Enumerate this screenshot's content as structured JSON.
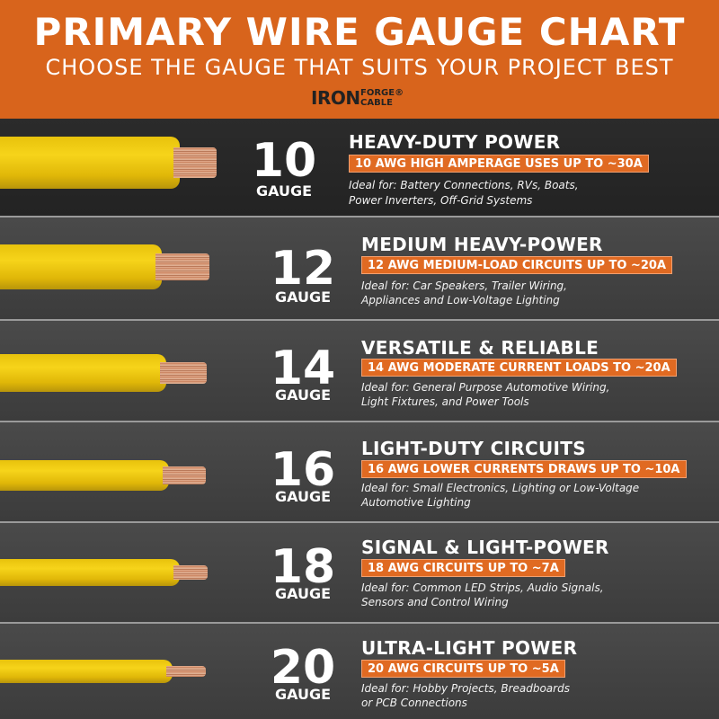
{
  "header": {
    "title": "PRIMARY WIRE GAUGE CHART",
    "subtitle": "CHOOSE THE GAUGE THAT SUITS YOUR PROJECT BEST",
    "logo_iron": "IRON",
    "logo_forge": "FORGE®",
    "logo_cable": "CABLE"
  },
  "colors": {
    "brand_orange": "#d8641c",
    "label_bar": "#e06a22",
    "wire_jacket": "#f2cf14",
    "copper": "#c47a55"
  },
  "rows": [
    {
      "gauge": "10",
      "gauge_word": "GAUGE",
      "heading": "HEAVY-DUTY POWER",
      "bar": "10 AWG HIGH AMPERAGE USES UP TO ~30A",
      "desc1": "Ideal for: Battery Connections, RVs, Boats,",
      "desc2": "Power Inverters, Off-Grid Systems"
    },
    {
      "gauge": "12",
      "gauge_word": "GAUGE",
      "heading": "MEDIUM HEAVY-POWER",
      "bar": "12 AWG MEDIUM-LOAD CIRCUITS UP TO ~20A",
      "desc1": "Ideal for: Car Speakers, Trailer Wiring,",
      "desc2": "Appliances and Low-Voltage Lighting"
    },
    {
      "gauge": "14",
      "gauge_word": "GAUGE",
      "heading": "VERSATILE & RELIABLE",
      "bar": "14 AWG MODERATE CURRENT LOADS TO ~20A",
      "desc1": "Ideal for: General Purpose Automotive Wiring,",
      "desc2": "Light Fixtures, and Power Tools"
    },
    {
      "gauge": "16",
      "gauge_word": "GAUGE",
      "heading": "LIGHT-DUTY CIRCUITS",
      "bar": "16 AWG LOWER CURRENTS DRAWS UP TO ~10A",
      "desc1": "Ideal for: Small Electronics, Lighting or Low-Voltage",
      "desc2": "Automotive Lighting"
    },
    {
      "gauge": "18",
      "gauge_word": "GAUGE",
      "heading": "SIGNAL & LIGHT-POWER",
      "bar": "18 AWG CIRCUITS UP TO ~7A",
      "desc1": "Ideal for: Common LED Strips, Audio Signals,",
      "desc2": "Sensors and Control Wiring"
    },
    {
      "gauge": "20",
      "gauge_word": "GAUGE",
      "heading": "ULTRA-LIGHT POWER",
      "bar": "20 AWG CIRCUITS UP TO ~5A",
      "desc1": "Ideal for: Hobby Projects, Breadboards",
      "desc2": "or PCB Connections"
    }
  ]
}
